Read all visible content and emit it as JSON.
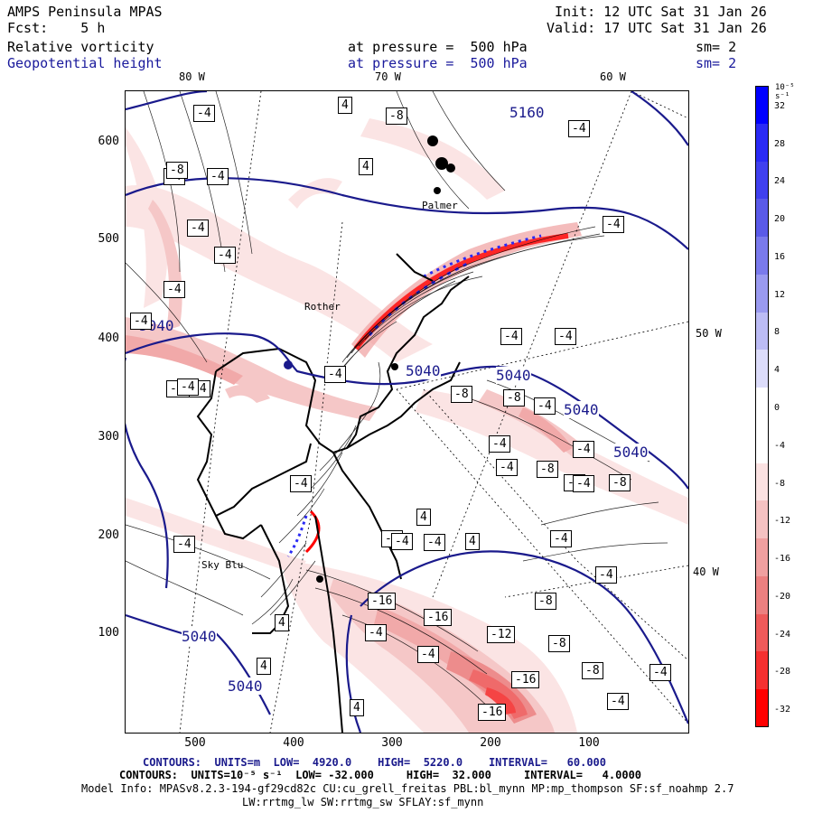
{
  "header": {
    "model": "AMPS Peninsula MPAS",
    "init": "Init: 12 UTC Sat 31 Jan 26",
    "fcst": "Fcst:    5 h",
    "valid": "Valid: 17 UTC Sat 31 Jan 26",
    "field1": "Relative vorticity",
    "field1_level": "at pressure =  500 hPa",
    "field1_sm": "sm= 2",
    "field2": "Geopotential height",
    "field2_level": "at pressure =  500 hPa",
    "field2_sm": "sm= 2"
  },
  "axes": {
    "y_ticks": [
      "600",
      "500",
      "400",
      "300",
      "200",
      "100"
    ],
    "x_ticks": [
      "500",
      "400",
      "300",
      "200",
      "100"
    ],
    "lon_top": [
      "80 W",
      "70 W",
      "60 W"
    ],
    "lat_right": [
      "50 W",
      "40 W"
    ]
  },
  "colorbar": {
    "units": "10⁻⁵ s⁻¹",
    "labels": [
      "32",
      "28",
      "24",
      "20",
      "16",
      "12",
      "8",
      "4",
      "0",
      "-4",
      "-8",
      "-12",
      "-16",
      "-20",
      "-24",
      "-28",
      "-32"
    ],
    "colors": [
      "#0000ff",
      "#2a2af5",
      "#4040ee",
      "#5a5ae8",
      "#7a7aec",
      "#9a9af0",
      "#bcbcf5",
      "#dcdcfa",
      "#ffffff",
      "#ffffff",
      "#fbe2e2",
      "#f5c2c2",
      "#f0a0a0",
      "#ec8080",
      "#ee5a5a",
      "#f53030",
      "#ff0000"
    ]
  },
  "places": {
    "palmer": "Palmer",
    "rothera": "Rother",
    "sky_blu": "Sky Blu"
  },
  "height_labels": [
    "5160",
    "5040",
    "5040",
    "5040",
    "5040",
    "5040",
    "5040",
    "5040"
  ],
  "vort_labels": [
    "-4",
    "4",
    "-8",
    "-4",
    "-8",
    "-4",
    "4",
    "-4",
    "-4",
    "-4",
    "-4",
    "-4",
    "-4",
    "-8",
    "-4",
    "-4",
    "-8",
    "-4",
    "-4",
    "-16",
    "-4",
    "-4",
    "-4",
    "-8",
    "-4",
    "-4",
    "-8",
    "-8",
    "-4",
    "-4",
    "4",
    "-4",
    "-4",
    "4",
    "-4",
    "-4",
    "-4",
    "-4",
    "-4",
    "-16",
    "-16",
    "-8",
    "-12",
    "-8",
    "-4",
    "-16",
    "-8",
    "-4",
    "-4",
    "4",
    "4",
    "4",
    "-16"
  ],
  "footer": {
    "line1_label": "CONTOURS:",
    "line1_units": "UNITS=m",
    "line1_low": "LOW=  4920.0",
    "line1_high": "HIGH=  5220.0",
    "line1_interval": "INTERVAL=   60.000",
    "line2_label": "CONTOURS:",
    "line2_units": "UNITS=10⁻⁵ s⁻¹",
    "line2_low": "LOW= -32.000",
    "line2_high": "HIGH=  32.000",
    "line2_interval": "INTERVAL=   4.0000",
    "model_info": "Model Info: MPASv8.2.3-194-gf29cd82c CU:cu_grell_freitas PBL:bl_mynn MP:mp_thompson SF:sf_noahmp 2.7",
    "model_info2": "LW:rrtmg_lw SW:rrtmg_sw SFLAY:sf_mynn"
  }
}
